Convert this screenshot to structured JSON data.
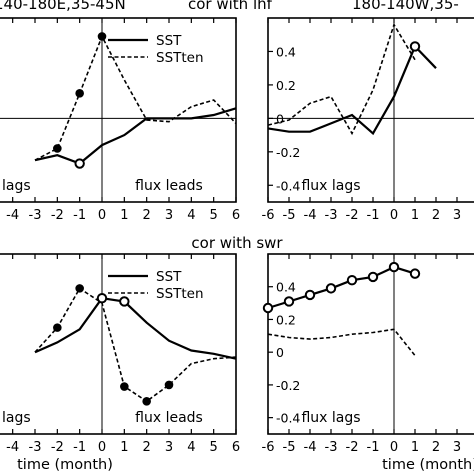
{
  "top_texts": {
    "left": "140-180E,35-45N",
    "center": "cor with lhf",
    "right": "180-140W,35-"
  },
  "mid_title": "cor with swr",
  "chart_data": [
    {
      "type": "line",
      "panel": "top-left",
      "x": [
        -6,
        -5,
        -4,
        -3,
        -2,
        -1,
        0,
        1,
        2,
        3,
        4,
        5,
        6
      ],
      "xlim": [
        -6,
        6
      ],
      "ylim": [
        -0.5,
        0.6
      ],
      "xticklabels": [
        "-6",
        "-5",
        "-4",
        "-3",
        "-2",
        "-1",
        "0",
        "1",
        "2",
        "3",
        "4",
        "5",
        "6"
      ],
      "yticklabels": [],
      "show_zero_line": true,
      "series": [
        {
          "name": "SST",
          "style": "solid",
          "marker": "open-circle",
          "values": [
            null,
            null,
            null,
            -0.25,
            -0.22,
            -0.27,
            -0.16,
            -0.1,
            0.0,
            0.0,
            0.0,
            0.02,
            0.06
          ]
        },
        {
          "name": "SSTten",
          "style": "dashed",
          "marker": "filled-circle",
          "values": [
            null,
            null,
            null,
            -0.25,
            -0.18,
            0.15,
            0.49,
            0.23,
            -0.01,
            -0.02,
            0.07,
            0.11,
            -0.03
          ]
        }
      ],
      "marker_x": {
        "SST": [
          -1
        ],
        "SSTten": [
          -2,
          -1,
          0
        ]
      },
      "legend": "top-right",
      "annotations": [
        {
          "text": "lags",
          "position": "bottom-left"
        },
        {
          "text": "flux leads",
          "position": "bottom-right"
        }
      ]
    },
    {
      "type": "line",
      "panel": "top-right",
      "x": [
        -6,
        -5,
        -4,
        -3,
        -2,
        -1,
        0,
        1,
        2,
        3,
        4,
        5,
        6
      ],
      "xlim": [
        -6,
        6
      ],
      "ylim": [
        -0.5,
        0.6
      ],
      "xticklabels": [
        "-6",
        "-5",
        "-4",
        "-3",
        "-2",
        "-1",
        "0",
        "1",
        "2",
        "3",
        "4",
        "5",
        "6"
      ],
      "yticklabels": [
        "0.4",
        "0.2",
        "0",
        "-0.2",
        "-0.4"
      ],
      "yticks": [
        0.4,
        0.2,
        0,
        -0.2,
        -0.4
      ],
      "show_zero_line": true,
      "series": [
        {
          "name": "SST",
          "style": "solid",
          "marker": "open-circle",
          "values": [
            -0.06,
            -0.08,
            -0.08,
            -0.03,
            0.02,
            -0.09,
            0.13,
            0.43,
            0.3,
            null,
            null,
            null,
            null
          ]
        },
        {
          "name": "SSTten",
          "style": "dashed",
          "marker": "none",
          "values": [
            -0.04,
            -0.01,
            0.09,
            0.13,
            -0.09,
            0.17,
            0.56,
            0.35,
            null,
            null,
            null,
            null,
            null
          ]
        }
      ],
      "marker_x": {
        "SST": [
          1
        ]
      },
      "annotations": [
        {
          "text": "flux lags",
          "position": "bottom-center"
        }
      ]
    },
    {
      "type": "line",
      "panel": "bottom-left",
      "x": [
        -6,
        -5,
        -4,
        -3,
        -2,
        -1,
        0,
        1,
        2,
        3,
        4,
        5,
        6
      ],
      "xlim": [
        -6,
        6
      ],
      "ylim": [
        -0.5,
        0.6
      ],
      "xlabel": "time (month)",
      "xticklabels": [
        "-6",
        "-5",
        "-4",
        "-3",
        "-2",
        "-1",
        "0",
        "1",
        "2",
        "3",
        "4",
        "5",
        "6"
      ],
      "yticklabels": [],
      "show_zero_line": false,
      "series": [
        {
          "name": "SST",
          "style": "solid",
          "marker": "open-circle",
          "values": [
            null,
            null,
            null,
            0.0,
            0.06,
            0.14,
            0.33,
            0.31,
            0.18,
            0.07,
            0.01,
            -0.01,
            -0.04
          ]
        },
        {
          "name": "SSTten",
          "style": "dashed",
          "marker": "filled-circle",
          "values": [
            null,
            null,
            null,
            0.0,
            0.15,
            0.39,
            0.3,
            -0.21,
            -0.3,
            -0.2,
            -0.07,
            -0.04,
            -0.03
          ]
        }
      ],
      "marker_x": {
        "SST": [
          0,
          1
        ],
        "SSTten": [
          -2,
          -1,
          1,
          2,
          3
        ]
      },
      "legend": "top-right",
      "annotations": [
        {
          "text": "lags",
          "position": "bottom-left"
        },
        {
          "text": "flux leads",
          "position": "bottom-right"
        }
      ]
    },
    {
      "type": "line",
      "panel": "bottom-right",
      "x": [
        -6,
        -5,
        -4,
        -3,
        -2,
        -1,
        0,
        1,
        2,
        3,
        4,
        5,
        6
      ],
      "xlim": [
        -6,
        6
      ],
      "ylim": [
        -0.5,
        0.6
      ],
      "xlabel": "time (month)",
      "xticklabels": [
        "-6",
        "-5",
        "-4",
        "-3",
        "-2",
        "-1",
        "0",
        "1",
        "2",
        "3",
        "4",
        "5",
        "6"
      ],
      "yticklabels": [
        "0.4",
        "0.2",
        "0",
        "-0.2",
        "-0.4"
      ],
      "yticks": [
        0.4,
        0.2,
        0,
        -0.2,
        -0.4
      ],
      "show_zero_line": false,
      "series": [
        {
          "name": "SST",
          "style": "solid",
          "marker": "open-circle",
          "values": [
            0.27,
            0.31,
            0.35,
            0.39,
            0.44,
            0.46,
            0.52,
            0.48,
            null,
            null,
            null,
            null,
            null
          ]
        },
        {
          "name": "SSTten",
          "style": "dashed",
          "marker": "none",
          "values": [
            0.11,
            0.09,
            0.08,
            0.09,
            0.11,
            0.12,
            0.14,
            -0.02,
            null,
            null,
            null,
            null,
            null
          ]
        }
      ],
      "annotations": [
        {
          "text": "flux lags",
          "position": "bottom-center"
        }
      ]
    }
  ]
}
